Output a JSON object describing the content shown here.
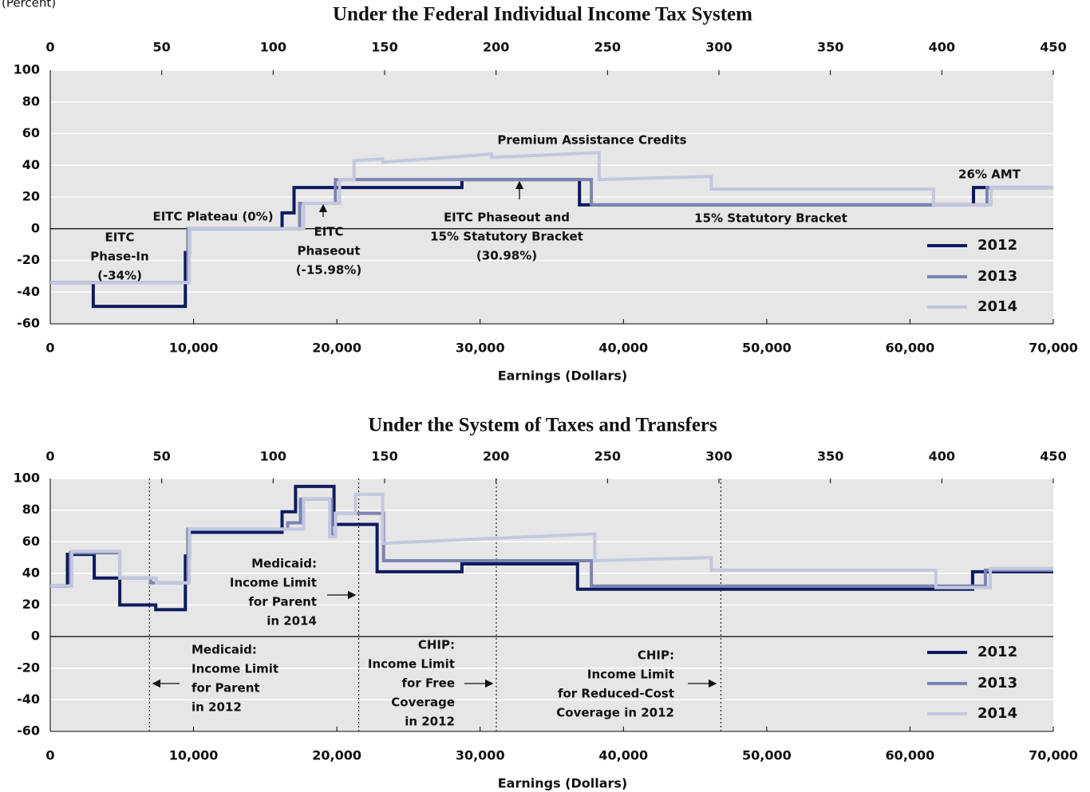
{
  "chart_data": [
    {
      "type": "line",
      "title": "Under the Federal Individual Income Tax System",
      "ylabel": "(Percent)",
      "xlabel": "Earnings (Dollars)",
      "xlim": [
        0,
        70000
      ],
      "xticks": [
        0,
        {
          "value": 10000,
          "label": "10,000"
        },
        {
          "value": 20000,
          "label": "20,000"
        },
        {
          "value": 30000,
          "label": "30,000"
        },
        {
          "value": 40000,
          "label": "40,000"
        },
        {
          "value": 50000,
          "label": "50,000"
        },
        {
          "value": 60000,
          "label": "60,000"
        },
        {
          "value": 70000,
          "label": "70,000"
        }
      ],
      "x2lim": [
        0,
        450
      ],
      "x2ticks": [
        0,
        50,
        100,
        150,
        200,
        250,
        300,
        350,
        400,
        450
      ],
      "ylim": [
        -60,
        100
      ],
      "yticks": [
        -60,
        -40,
        -20,
        0,
        20,
        40,
        60,
        80,
        100
      ],
      "grid": true,
      "legend": "lower right",
      "series": [
        {
          "name": "2012",
          "color": "#0c1a5e",
          "x": [
            0,
            3000,
            3000,
            9430,
            9430,
            9700,
            9700,
            16180,
            16180,
            17010,
            17010,
            28730,
            28730,
            36930,
            36930,
            64430,
            64430,
            70000
          ],
          "values": [
            -34,
            -34,
            -49,
            -49,
            -15,
            -15,
            0,
            0,
            10,
            10,
            26,
            26,
            31,
            31,
            15,
            15,
            26,
            26
          ]
        },
        {
          "name": "2013",
          "color": "#7b84b1",
          "x": [
            0,
            9600,
            9600,
            17400,
            17400,
            19900,
            19900,
            37760,
            37760,
            65370,
            65370,
            70000
          ],
          "values": [
            -34,
            -34,
            0,
            0,
            16,
            16,
            31,
            31,
            15,
            15,
            26,
            26
          ]
        },
        {
          "name": "2014",
          "color": "#c3c7df",
          "x": [
            0,
            9700,
            9700,
            17680,
            17680,
            20190,
            20190,
            21200,
            21200,
            23200,
            23200,
            30800,
            30800,
            38300,
            38300,
            46130,
            46130,
            61640,
            61640,
            65650,
            65650,
            70000
          ],
          "values": [
            -34,
            -34,
            0,
            0,
            16,
            16,
            31,
            31,
            43,
            44,
            42,
            47,
            45,
            48,
            31,
            33,
            25,
            25,
            15,
            15,
            26,
            26
          ]
        }
      ],
      "annotations": [
        [
          "EITC",
          "Phase-In",
          "(-34%)"
        ],
        [
          "EITC Plateau (0%)"
        ],
        [
          "EITC",
          "Phaseout",
          "(-15.98%)"
        ],
        [
          "EITC Phaseout and",
          "15% Statutory Bracket",
          "(30.98%)"
        ],
        [
          "Premium Assistance Credits"
        ],
        [
          "26% AMT"
        ],
        [
          "15% Statutory Bracket"
        ]
      ]
    },
    {
      "type": "line",
      "title": "Under the System of Taxes and Transfers",
      "xlabel": "Earnings (Dollars)",
      "xlim": [
        0,
        70000
      ],
      "xticks": [
        0,
        {
          "value": 10000,
          "label": "10,000"
        },
        {
          "value": 20000,
          "label": "20,000"
        },
        {
          "value": 30000,
          "label": "30,000"
        },
        {
          "value": 40000,
          "label": "40,000"
        },
        {
          "value": 50000,
          "label": "50,000"
        },
        {
          "value": 60000,
          "label": "60,000"
        },
        {
          "value": 70000,
          "label": "70,000"
        }
      ],
      "x2lim": [
        0,
        450
      ],
      "x2ticks": [
        0,
        50,
        100,
        150,
        200,
        250,
        300,
        350,
        400,
        450
      ],
      "ylim": [
        -60,
        100
      ],
      "yticks": [
        -60,
        -40,
        -20,
        0,
        20,
        40,
        60,
        80,
        100
      ],
      "grid": true,
      "legend": "lower right",
      "vlines": [
        6920,
        21530,
        31130,
        46800
      ],
      "series": [
        {
          "name": "2012",
          "color": "#0c1a5e",
          "x": [
            0,
            1200,
            1200,
            3070,
            3070,
            4850,
            4850,
            7360,
            7360,
            9430,
            9430,
            9700,
            9700,
            16180,
            16180,
            17120,
            17120,
            19800,
            19800,
            22810,
            22810,
            28730,
            28730,
            36800,
            36800,
            64370,
            64370,
            70000
          ],
          "values": [
            32,
            32,
            52,
            52,
            37,
            37,
            20,
            20,
            17,
            17,
            51,
            51,
            66,
            66,
            79,
            79,
            95,
            95,
            71,
            71,
            41,
            41,
            46,
            46,
            30,
            30,
            41,
            41
          ]
        },
        {
          "name": "2013",
          "color": "#7b84b1",
          "x": [
            0,
            1400,
            1400,
            4850,
            4850,
            7000,
            7000,
            9600,
            9600,
            16570,
            16570,
            17460,
            17460,
            19630,
            19630,
            19900,
            19900,
            23260,
            23260,
            37760,
            37760,
            65260,
            65260,
            70000
          ],
          "values": [
            32,
            32,
            53,
            53,
            37,
            37,
            34,
            34,
            68,
            68,
            72,
            72,
            87,
            87,
            64,
            64,
            78,
            78,
            48,
            48,
            32,
            32,
            42,
            42
          ]
        },
        {
          "name": "2014",
          "color": "#c3c7df",
          "x": [
            0,
            1500,
            1500,
            4850,
            4850,
            7400,
            7400,
            9700,
            9700,
            17680,
            17680,
            19500,
            19500,
            19900,
            19900,
            21300,
            21300,
            23200,
            23200,
            38000,
            38000,
            46130,
            46130,
            61800,
            61800,
            65600,
            65600,
            70000
          ],
          "values": [
            32,
            32,
            54,
            54,
            37,
            37,
            34,
            34,
            68,
            68,
            87,
            87,
            63,
            63,
            78,
            78,
            90,
            90,
            59,
            65,
            48,
            50,
            42,
            42,
            31,
            31,
            43,
            43
          ]
        }
      ],
      "annotations": [
        [
          "Medicaid:",
          "Income Limit",
          "for Parent",
          "in 2014"
        ],
        [
          "Medicaid:",
          "Income Limit",
          "for Parent",
          "in 2012"
        ],
        [
          "CHIP:",
          "Income Limit",
          "for Free",
          "Coverage",
          "in 2012"
        ],
        [
          "CHIP:",
          "Income Limit",
          "for Reduced-Cost",
          "Coverage in 2012"
        ]
      ]
    }
  ]
}
